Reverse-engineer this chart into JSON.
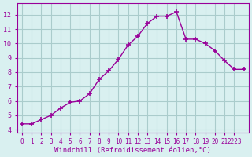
{
  "x": [
    0,
    1,
    2,
    3,
    4,
    5,
    6,
    7,
    8,
    9,
    10,
    11,
    12,
    13,
    14,
    15,
    16,
    17,
    18,
    19,
    20,
    21,
    22,
    23
  ],
  "y": [
    4.4,
    4.4,
    4.7,
    5.0,
    5.5,
    5.9,
    6.0,
    6.5,
    7.5,
    8.1,
    8.9,
    9.9,
    10.5,
    11.4,
    11.9,
    11.9,
    12.2,
    10.3,
    10.3,
    10.0,
    9.5,
    8.8,
    8.2,
    8.2
  ],
  "line_color": "#990099",
  "marker": "+",
  "marker_size": 4,
  "background_color": "#d9f0f0",
  "grid_color": "#aacccc",
  "xlabel": "Windchill (Refroidissement éolien,°C)",
  "xlabel_color": "#990099",
  "ylabel_ticks": [
    4,
    5,
    6,
    7,
    8,
    9,
    10,
    11,
    12
  ],
  "xlim": [
    -0.5,
    23.5
  ],
  "ylim": [
    3.8,
    12.8
  ],
  "tick_color": "#990099",
  "spine_color": "#990099",
  "font_family": "monospace"
}
